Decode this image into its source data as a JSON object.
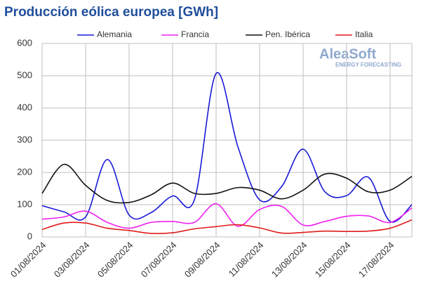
{
  "chart_data": {
    "type": "line",
    "title": "Producción eólica europea [GWh]",
    "watermark": {
      "brand": "AleaSoft",
      "tagline": "ENERGY FORECASTING"
    },
    "categories": [
      "01/08/2024",
      null,
      "03/08/2024",
      null,
      "05/08/2024",
      null,
      "07/08/2024",
      null,
      "09/08/2024",
      null,
      "11/08/2024",
      null,
      "13/08/2024",
      null,
      "15/08/2024",
      null,
      "17/08/2024",
      null
    ],
    "series": [
      {
        "name": "Alemania",
        "color": "#1a1ad6",
        "values": [
          97,
          78,
          62,
          240,
          68,
          75,
          127,
          115,
          507,
          280,
          115,
          155,
          272,
          140,
          128,
          185,
          48,
          100
        ]
      },
      {
        "name": "Francia",
        "color": "#ee22ee",
        "values": [
          55,
          62,
          80,
          45,
          27,
          45,
          48,
          45,
          103,
          33,
          85,
          95,
          37,
          48,
          64,
          65,
          45,
          90
        ]
      },
      {
        "name": "Pen. Ibérica",
        "color": "#111111",
        "values": [
          135,
          225,
          160,
          113,
          107,
          130,
          167,
          135,
          135,
          153,
          145,
          118,
          145,
          195,
          182,
          140,
          145,
          188
        ]
      },
      {
        "name": "Italia",
        "color": "#e01b1b",
        "values": [
          23,
          43,
          43,
          27,
          20,
          11,
          13,
          25,
          32,
          38,
          28,
          12,
          14,
          18,
          17,
          18,
          27,
          53
        ]
      }
    ],
    "ylim": [
      0,
      600
    ],
    "yticks": [
      0,
      100,
      200,
      300,
      400,
      500,
      600
    ],
    "grid": true,
    "legend": "top"
  }
}
